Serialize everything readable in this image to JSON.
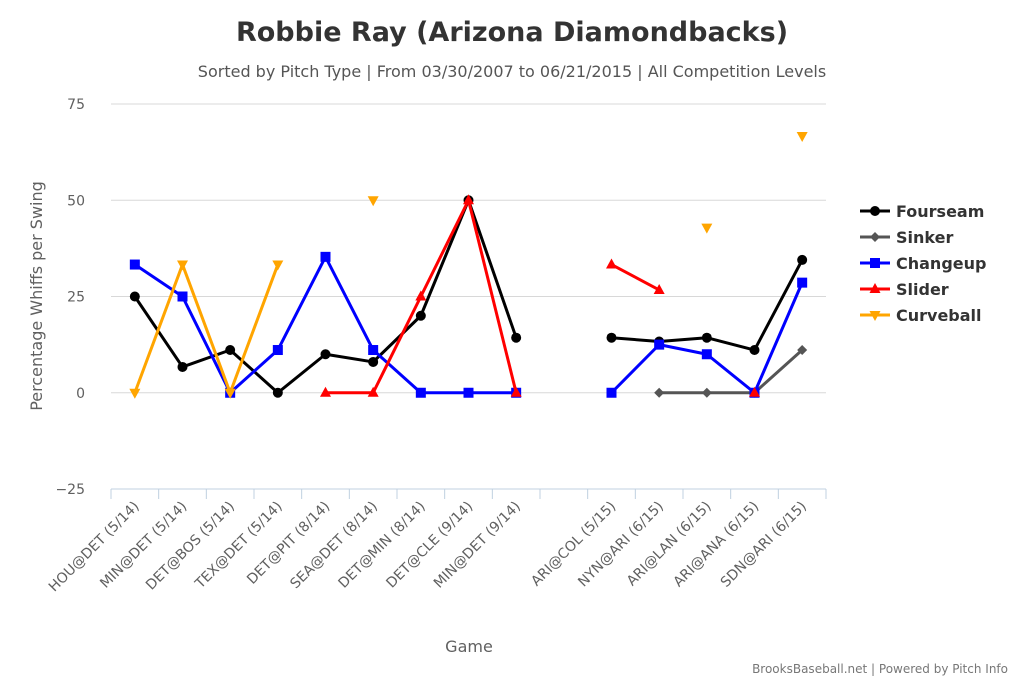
{
  "chart_data": {
    "type": "line",
    "title": "Robbie Ray (Arizona Diamondbacks)",
    "subtitle": "Sorted by Pitch Type | From 03/30/2007 to 06/21/2015 | All Competition Levels",
    "xlabel": "Game",
    "ylabel": "Percentage Whiffs per Swing",
    "ylim": [
      -25,
      75
    ],
    "yticks": [
      -25,
      0,
      25,
      50,
      75
    ],
    "grid": true,
    "legend_position": "right",
    "categories": [
      "HOU@DET (5/14)",
      "MIN@DET (5/14)",
      "DET@BOS (5/14)",
      "TEX@DET (5/14)",
      "DET@PIT (8/14)",
      "SEA@DET (8/14)",
      "DET@MIN (8/14)",
      "DET@CLE (9/14)",
      "MIN@DET (9/14)",
      "",
      "ARI@COL (5/15)",
      "NYN@ARI (6/15)",
      "ARI@LAN (6/15)",
      "ARI@ANA (6/15)",
      "SDN@ARI (6/15)"
    ],
    "series": [
      {
        "name": "Fourseam",
        "color": "#000000",
        "marker": "circle",
        "values": [
          25,
          6.7,
          11.1,
          0,
          10,
          8,
          20,
          50,
          14.3,
          null,
          14.3,
          13.3,
          14.3,
          11.1,
          34.5
        ]
      },
      {
        "name": "Sinker",
        "color": "#555555",
        "marker": "diamond",
        "values": [
          null,
          null,
          null,
          null,
          null,
          null,
          null,
          null,
          null,
          null,
          null,
          0,
          0,
          0,
          11.1
        ]
      },
      {
        "name": "Changeup",
        "color": "#0000ff",
        "marker": "square",
        "values": [
          33.3,
          25,
          0,
          11.1,
          35.3,
          11.1,
          0,
          0,
          0,
          null,
          0,
          12.5,
          10,
          0,
          28.6
        ]
      },
      {
        "name": "Slider",
        "color": "#ff0000",
        "marker": "triangle",
        "values": [
          null,
          null,
          null,
          null,
          0,
          0,
          25,
          50,
          0,
          null,
          33.3,
          26.7,
          null,
          0,
          null
        ]
      },
      {
        "name": "Curveball",
        "color": "#ffa500",
        "marker": "triangle-down",
        "values": [
          0,
          33.3,
          0,
          33.3,
          null,
          50,
          null,
          null,
          null,
          null,
          null,
          null,
          42.9,
          null,
          66.7
        ]
      }
    ]
  },
  "credit": "BrooksBaseball.net | Powered by Pitch Info"
}
